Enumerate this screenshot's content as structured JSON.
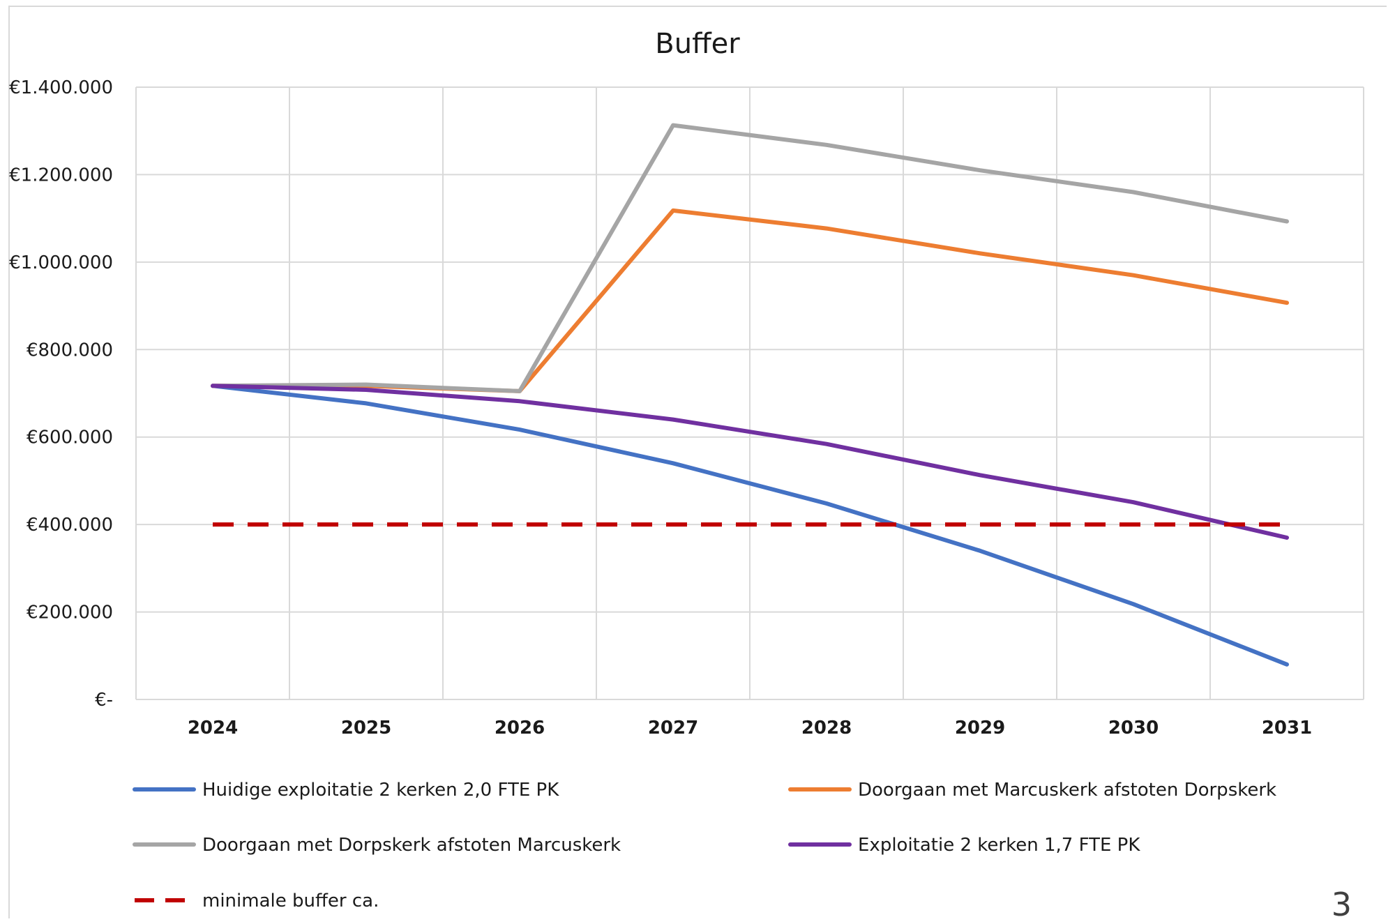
{
  "page_number": "3",
  "chart_data": {
    "type": "line",
    "title": "Buffer",
    "xlabel": "",
    "ylabel": "",
    "ylim": [
      0,
      1400000
    ],
    "yticks": [
      0,
      200000,
      400000,
      600000,
      800000,
      1000000,
      1200000,
      1400000
    ],
    "ytick_labels": [
      "€-",
      "€200.000",
      "€400.000",
      "€600.000",
      "€800.000",
      "€1.000.000",
      "€1.200.000",
      "€1.400.000"
    ],
    "categories": [
      "2024",
      "2025",
      "2026",
      "2027",
      "2028",
      "2029",
      "2030",
      "2031"
    ],
    "grid": true,
    "legend_position": "bottom",
    "series": [
      {
        "name": "Huidige exploitatie 2 kerken 2,0 FTE PK",
        "color": "#4472c4",
        "dashed": false,
        "values": [
          717000,
          677000,
          617000,
          540000,
          448000,
          340000,
          218000,
          80000
        ]
      },
      {
        "name": "Doorgaan met Marcuskerk afstoten Dorpskerk",
        "color": "#ed7d31",
        "dashed": false,
        "values": [
          717000,
          717000,
          705000,
          1118000,
          1077000,
          1020000,
          970000,
          907000
        ]
      },
      {
        "name": "Doorgaan met Dorpskerk afstoten Marcuskerk",
        "color": "#a5a5a5",
        "dashed": false,
        "values": [
          717000,
          720000,
          705000,
          1313000,
          1268000,
          1210000,
          1160000,
          1093000
        ]
      },
      {
        "name": "Exploitatie 2 kerken 1,7 FTE PK",
        "color": "#7030a0",
        "dashed": false,
        "values": [
          717000,
          708000,
          682000,
          640000,
          584000,
          513000,
          451000,
          370000
        ]
      },
      {
        "name": "minimale buffer ca.",
        "color": "#c00000",
        "dashed": true,
        "values": [
          400000,
          400000,
          400000,
          400000,
          400000,
          400000,
          400000,
          400000
        ]
      }
    ]
  }
}
